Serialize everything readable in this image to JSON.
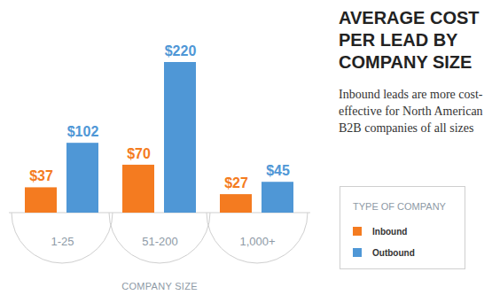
{
  "chart_data": {
    "type": "bar",
    "title": "AVERAGE COST PER LEAD BY COMPANY SIZE",
    "subtitle": "Inbound leads are more cost-effective for North American B2B companies of all sizes",
    "x_label": "COMPANY SIZE",
    "legend_title": "TYPE OF COMPANY",
    "categories": [
      "1-25",
      "51-200",
      "1,000+"
    ],
    "series": [
      {
        "name": "Inbound",
        "color": "#f47b20",
        "values": [
          37,
          70,
          27
        ],
        "value_labels": [
          "$37",
          "$70",
          "$27"
        ]
      },
      {
        "name": "Outbound",
        "color": "#4f97d6",
        "values": [
          102,
          220,
          45
        ],
        "value_labels": [
          "$102",
          "$220",
          "$45"
        ]
      }
    ],
    "ylim": [
      0,
      220
    ],
    "data_labels": true,
    "tick_labels": "x",
    "legend": "right"
  }
}
